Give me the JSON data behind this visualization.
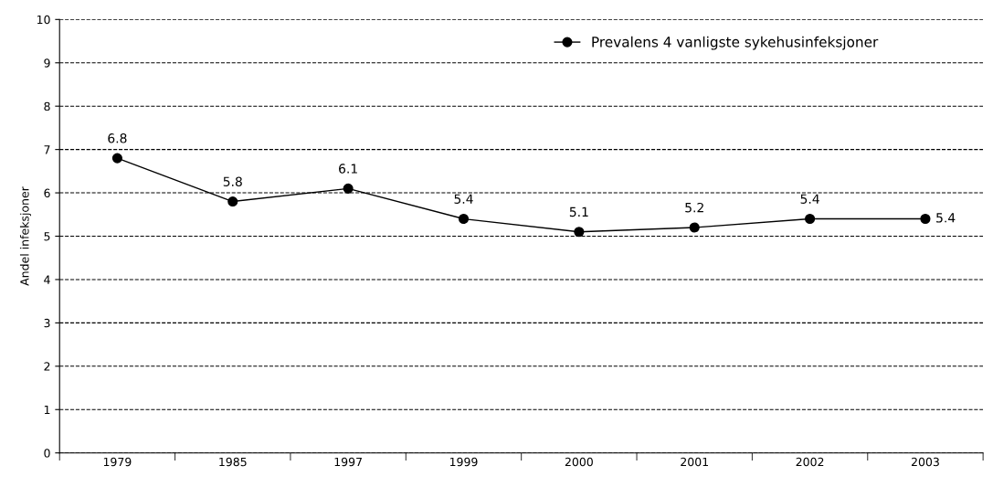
{
  "chart_data": {
    "type": "line",
    "ylabel": "Andel infeksjoner",
    "categories": [
      "1979",
      "1985",
      "1997",
      "1999",
      "2000",
      "2001",
      "2002",
      "2003"
    ],
    "series": [
      {
        "name": "Prevalens 4 vanligste sykehusinfeksjoner",
        "color": "#000000",
        "values": [
          6.8,
          5.8,
          6.1,
          5.4,
          5.1,
          5.2,
          5.4,
          5.4
        ]
      }
    ],
    "ylim": [
      0,
      10
    ],
    "yticks": [
      0,
      1,
      2,
      3,
      4,
      5,
      6,
      7,
      8,
      9,
      10
    ],
    "grid": "y",
    "legend": "top right",
    "marker": "circle",
    "line_style": "solid",
    "data_labels": true
  }
}
